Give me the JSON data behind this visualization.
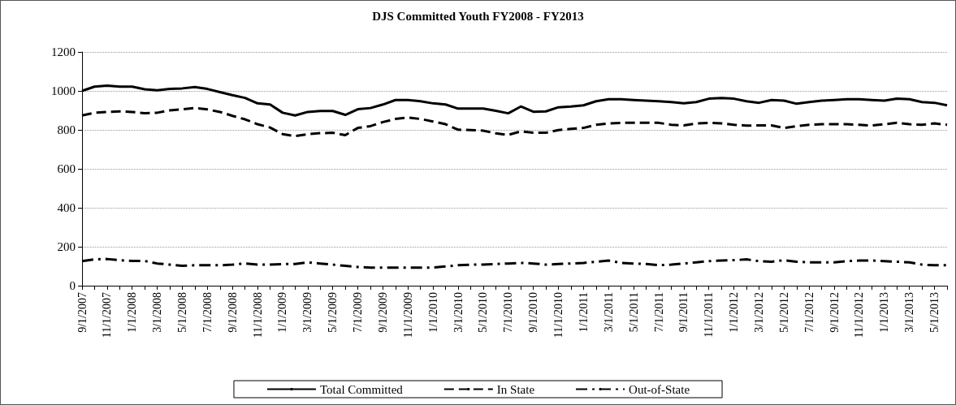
{
  "chart_data": {
    "type": "line",
    "title": "DJS Committed Youth FY2008 - FY2013",
    "categories": [
      "9/1/2007",
      null,
      "11/1/2007",
      null,
      "1/1/2008",
      null,
      "3/1/2008",
      null,
      "5/1/2008",
      null,
      "7/1/2008",
      null,
      "9/1/2008",
      null,
      "11/1/2008",
      null,
      "1/1/2009",
      null,
      "3/1/2009",
      null,
      "5/1/2009",
      null,
      "7/1/2009",
      null,
      "9/1/2009",
      null,
      "11/1/2009",
      null,
      "1/1/2010",
      null,
      "3/1/2010",
      null,
      "5/1/2010",
      null,
      "7/1/2010",
      null,
      "9/1/2010",
      null,
      "11/1/2010",
      null,
      "1/1/2011",
      null,
      "3/1/2011",
      null,
      "5/1/2011",
      null,
      "7/1/2011",
      null,
      "9/1/2011",
      null,
      "11/1/2011",
      null,
      "1/1/2012",
      null,
      "3/1/2012",
      null,
      "5/1/2012",
      null,
      "7/1/2012",
      null,
      "9/1/2012",
      null,
      "11/1/2012",
      null,
      "1/1/2013",
      null,
      "3/1/2013",
      null,
      "5/1/2013",
      null
    ],
    "series": [
      {
        "name": "Total Committed",
        "color": "#000000",
        "line_style": "solid",
        "values": [
          1000,
          1022,
          1027,
          1022,
          1022,
          1008,
          1003,
          1010,
          1013,
          1020,
          1010,
          994,
          978,
          964,
          936,
          930,
          888,
          874,
          892,
          897,
          897,
          877,
          906,
          912,
          930,
          953,
          953,
          947,
          936,
          930,
          909,
          909,
          909,
          898,
          885,
          920,
          893,
          895,
          916,
          920,
          926,
          947,
          957,
          957,
          953,
          950,
          947,
          943,
          936,
          943,
          960,
          964,
          960,
          947,
          939,
          953,
          950,
          934,
          943,
          950,
          953,
          957,
          957,
          953,
          950,
          960,
          957,
          943,
          939,
          926
        ]
      },
      {
        "name": "In State",
        "color": "#000000",
        "line_style": "dashed",
        "values": [
          874,
          888,
          892,
          895,
          892,
          885,
          888,
          900,
          906,
          912,
          905,
          892,
          872,
          854,
          829,
          812,
          778,
          768,
          778,
          783,
          785,
          773,
          810,
          819,
          840,
          856,
          863,
          856,
          843,
          829,
          801,
          799,
          796,
          782,
          774,
          792,
          785,
          785,
          799,
          805,
          810,
          826,
          833,
          836,
          836,
          836,
          836,
          826,
          823,
          833,
          836,
          833,
          826,
          822,
          823,
          823,
          810,
          819,
          826,
          829,
          829,
          829,
          826,
          822,
          829,
          836,
          829,
          826,
          833,
          826
        ]
      },
      {
        "name": "Out-of-State",
        "color": "#000000",
        "line_style": "dashdot",
        "values": [
          126,
          135,
          137,
          131,
          127,
          127,
          114,
          108,
          102,
          105,
          105,
          105,
          108,
          114,
          108,
          108,
          111,
          111,
          120,
          114,
          108,
          102,
          96,
          93,
          93,
          93,
          93,
          93,
          93,
          99,
          105,
          108,
          108,
          111,
          114,
          117,
          114,
          108,
          111,
          114,
          117,
          123,
          129,
          117,
          114,
          111,
          105,
          108,
          114,
          120,
          126,
          129,
          131,
          135,
          126,
          123,
          131,
          123,
          120,
          120,
          120,
          126,
          129,
          129,
          126,
          123,
          120,
          108,
          105,
          105
        ]
      }
    ],
    "ylim": [
      0,
      1200
    ],
    "yticks": [
      0,
      200,
      400,
      600,
      800,
      1000,
      1200
    ],
    "grid": "y",
    "legend": "bottom",
    "marker": "none"
  }
}
